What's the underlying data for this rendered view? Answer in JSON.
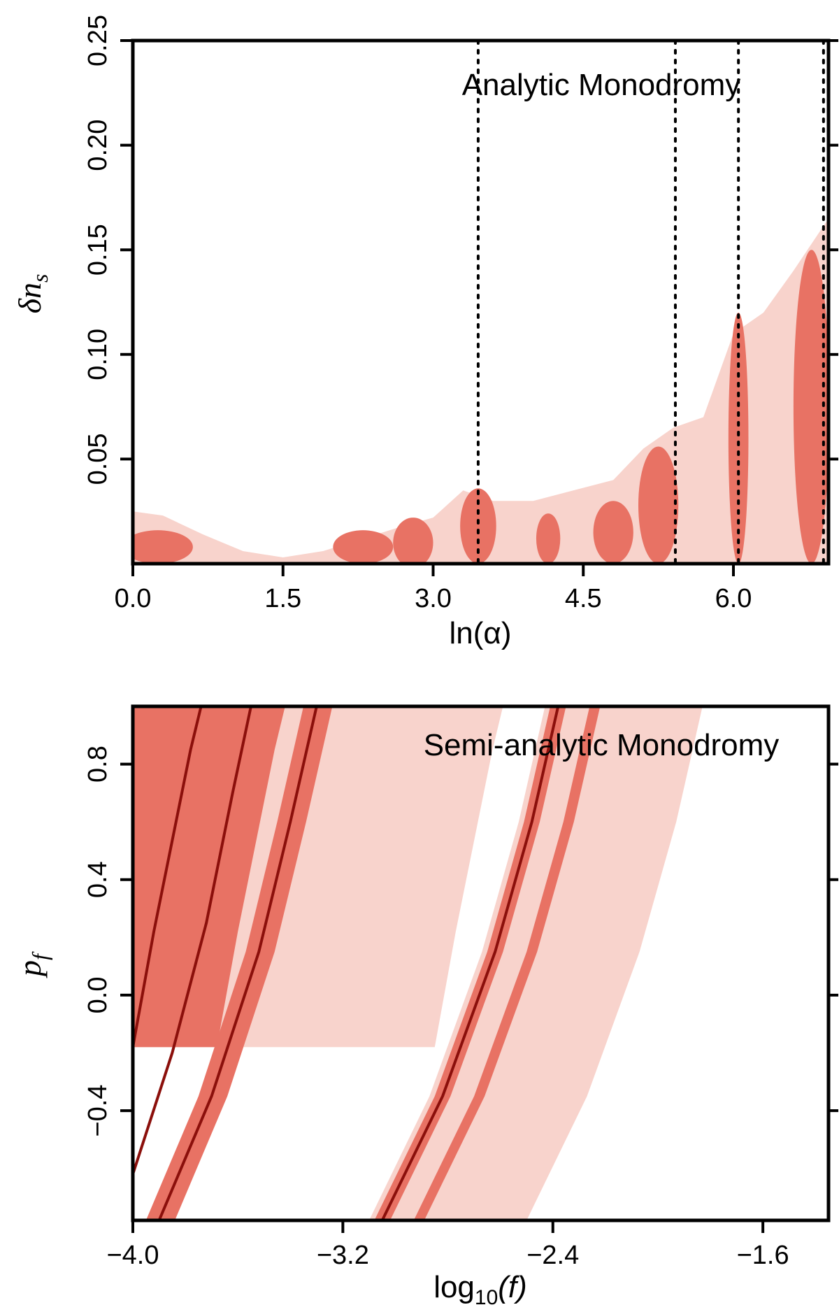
{
  "chart_data": [
    {
      "type": "contour",
      "title": "Analytic Monodromy",
      "xlabel": "ln(α)",
      "ylabel": "δn_s",
      "ylabel_main": "δn",
      "ylabel_sub": "s",
      "xlim": [
        0.0,
        6.95
      ],
      "ylim": [
        0.0,
        0.25
      ],
      "xticks": [
        0.0,
        1.5,
        3.0,
        4.5,
        6.0
      ],
      "xtick_labels": [
        "0.0",
        "1.5",
        "3.0",
        "4.5",
        "6.0"
      ],
      "yticks": [
        0.05,
        0.1,
        0.15,
        0.2,
        0.25
      ],
      "ytick_labels": [
        "0.05",
        "0.10",
        "0.15",
        "0.20",
        "0.25"
      ],
      "reference_lines_x": [
        3.45,
        5.42,
        6.05,
        6.9
      ],
      "levels": [
        "68%",
        "95%"
      ],
      "colors": {
        "inner": "#e87264",
        "outer": "#f8d3cc",
        "frame": "#000000"
      },
      "regions_outer": [
        {
          "x": [
            0.0,
            0.3,
            0.7,
            1.1,
            1.5,
            1.9,
            2.3,
            2.7,
            3.0,
            3.3,
            3.6,
            4.0,
            4.4,
            4.8,
            5.1,
            5.4,
            5.7,
            6.0,
            6.3,
            6.6,
            6.95
          ],
          "y": [
            0.025,
            0.023,
            0.014,
            0.006,
            0.003,
            0.006,
            0.012,
            0.018,
            0.022,
            0.035,
            0.03,
            0.03,
            0.035,
            0.04,
            0.055,
            0.065,
            0.07,
            0.11,
            0.12,
            0.14,
            0.165
          ]
        }
      ],
      "regions_inner": [
        {
          "cx": 0.25,
          "cy": 0.008,
          "rx": 0.35,
          "ry": 0.008
        },
        {
          "cx": 2.3,
          "cy": 0.008,
          "rx": 0.3,
          "ry": 0.008
        },
        {
          "cx": 2.8,
          "cy": 0.01,
          "rx": 0.2,
          "ry": 0.012
        },
        {
          "cx": 3.45,
          "cy": 0.018,
          "rx": 0.18,
          "ry": 0.018
        },
        {
          "cx": 4.15,
          "cy": 0.012,
          "rx": 0.12,
          "ry": 0.012
        },
        {
          "cx": 4.8,
          "cy": 0.015,
          "rx": 0.2,
          "ry": 0.015
        },
        {
          "cx": 5.25,
          "cy": 0.028,
          "rx": 0.2,
          "ry": 0.028
        },
        {
          "cx": 6.05,
          "cy": 0.06,
          "rx": 0.1,
          "ry": 0.06
        },
        {
          "cx": 6.78,
          "cy": 0.075,
          "rx": 0.18,
          "ry": 0.075
        }
      ]
    },
    {
      "type": "contour",
      "title": "Semi-analytic Monodromy",
      "xlabel": "log10(f)",
      "xlabel_main": "log",
      "xlabel_sub": "10",
      "xlabel_var": "(f)",
      "ylabel": "p_f",
      "ylabel_main": "p",
      "ylabel_sub": "f",
      "xlim": [
        -4.0,
        -1.35
      ],
      "ylim": [
        -0.78,
        1.0
      ],
      "xticks": [
        -4.0,
        -3.2,
        -2.4,
        -1.6
      ],
      "xtick_labels": [
        "−4.0",
        "−3.2",
        "−2.4",
        "−1.6"
      ],
      "yticks": [
        -0.4,
        0.0,
        0.4,
        0.8
      ],
      "ytick_labels": [
        "−0.4",
        "0.0",
        "0.4",
        "0.8"
      ],
      "levels": [
        "68%",
        "95%"
      ],
      "colors": {
        "inner": "#e87264",
        "outer": "#f8d3cc",
        "curve": "#8b0f0b",
        "frame": "#000000"
      },
      "ridge_curves": [
        {
          "name": "curve-1",
          "x": [
            -4.0,
            -3.92,
            -3.84,
            -3.78,
            -3.74
          ],
          "y": [
            -0.18,
            0.22,
            0.58,
            0.85,
            1.0
          ]
        },
        {
          "name": "curve-2",
          "x": [
            -4.0,
            -3.85,
            -3.72,
            -3.62,
            -3.55
          ],
          "y": [
            -0.62,
            -0.2,
            0.25,
            0.7,
            1.0
          ]
        },
        {
          "name": "curve-3",
          "x": [
            -3.9,
            -3.7,
            -3.52,
            -3.4,
            -3.3
          ],
          "y": [
            -0.78,
            -0.35,
            0.15,
            0.6,
            1.0
          ]
        },
        {
          "name": "curve-4",
          "x": [
            -3.05,
            -2.82,
            -2.62,
            -2.48,
            -2.38
          ],
          "y": [
            -0.78,
            -0.35,
            0.15,
            0.6,
            1.0
          ]
        }
      ]
    }
  ]
}
